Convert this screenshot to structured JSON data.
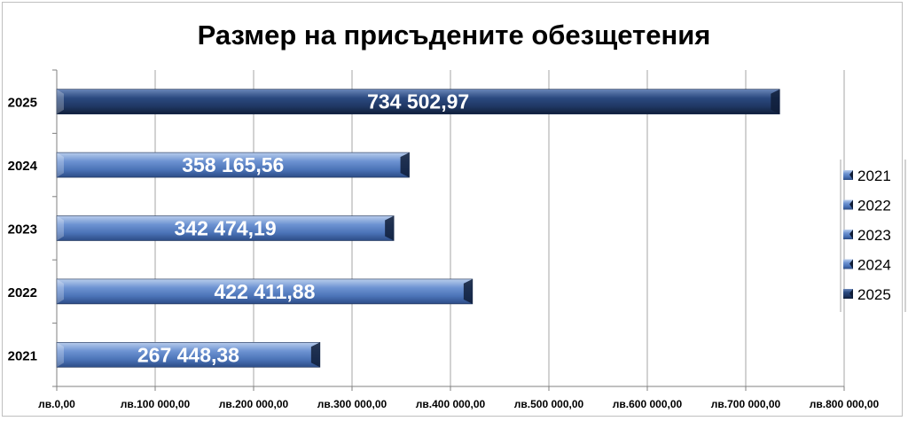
{
  "chart_data": {
    "type": "bar",
    "orientation": "horizontal",
    "title": "Размер на присъдените обезщетения",
    "categories": [
      "2021",
      "2022",
      "2023",
      "2024",
      "2025"
    ],
    "values": [
      267448.38,
      422411.88,
      342474.19,
      358165.56,
      734502.97
    ],
    "data_labels": [
      "267 448,38",
      "422 411,88",
      "342 474,19",
      "358 165,56",
      "734 502,97"
    ],
    "xlim": [
      0,
      800000
    ],
    "x_ticks": [
      0,
      100000,
      200000,
      300000,
      400000,
      500000,
      600000,
      700000,
      800000
    ],
    "x_tick_labels": [
      "лв.0,00",
      "лв.100 000,00",
      "лв.200 000,00",
      "лв.300 000,00",
      "лв.400 000,00",
      "лв.500 000,00",
      "лв.600 000,00",
      "лв.700 000,00",
      "лв.800 000,00"
    ],
    "grid": true,
    "legend": {
      "position": "right",
      "entries": [
        "2021",
        "2022",
        "2023",
        "2024",
        "2025"
      ]
    },
    "colors": [
      "#5a82c4",
      "#5a82c4",
      "#5a82c4",
      "#5a82c4",
      "#1f3763"
    ]
  }
}
